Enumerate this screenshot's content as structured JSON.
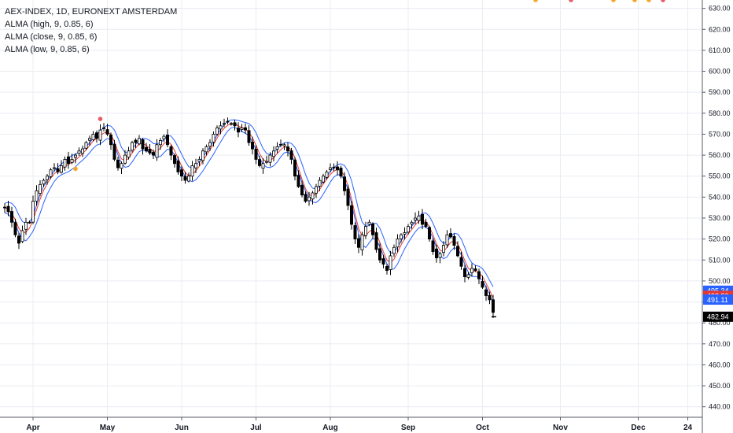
{
  "legend": {
    "title": "AEX-INDEX, 1D, EURONEXT AMSTERDAM",
    "line1": "ALMA (high, 9, 0.85, 6)",
    "line2": "ALMA (close, 9, 0.85, 6)",
    "line3": "ALMA (low, 9, 0.85, 6)"
  },
  "colors": {
    "grid": "#e9ecf2",
    "axis_line": "#555a66",
    "bull_fill": "#ffffff",
    "bear_fill": "#000000",
    "alma_high": "#2962ff",
    "alma_close": "#e53935",
    "alma_low": "#2962ff",
    "dot_orange": "#f5a623",
    "dot_red": "#e85a6a"
  },
  "chart_data": {
    "type": "candlestick",
    "title": "AEX-INDEX, 1D, EURONEXT AMSTERDAM",
    "ylim": [
      435,
      634
    ],
    "y_ticks": [
      440,
      450,
      460,
      470,
      480,
      490,
      500,
      510,
      520,
      530,
      540,
      550,
      560,
      570,
      580,
      590,
      600,
      610,
      620,
      630
    ],
    "y_tick_labels": [
      "440.00",
      "450.00",
      "460.00",
      "470.00",
      "480.00",
      "490.00",
      "500.00",
      "510.00",
      "520.00",
      "530.00",
      "540.00",
      "550.00",
      "560.00",
      "570.00",
      "580.00",
      "590.00",
      "600.00",
      "610.00",
      "620.00",
      "630.00"
    ],
    "x_labels": [
      "Apr",
      "May",
      "Jun",
      "Jul",
      "Aug",
      "Sep",
      "Oct",
      "Nov",
      "Dec",
      "24"
    ],
    "label_bars": [
      8,
      29,
      50,
      71,
      92,
      114,
      135,
      157,
      179,
      193
    ],
    "close": [
      535,
      533,
      528,
      522,
      518,
      524,
      528,
      528,
      538,
      543,
      546,
      548,
      550,
      553,
      554,
      552,
      555,
      558,
      556,
      558,
      560,
      562,
      563,
      566,
      568,
      570,
      568,
      572,
      573,
      570,
      565,
      558,
      554,
      556,
      560,
      562,
      566,
      566,
      568,
      563,
      562,
      561,
      560,
      565,
      567,
      569,
      565,
      560,
      556,
      552,
      550,
      548,
      550,
      555,
      556,
      558,
      562,
      564,
      566,
      570,
      573,
      574,
      575,
      576,
      575,
      574,
      571,
      573,
      572,
      566,
      563,
      558,
      555,
      556,
      557,
      560,
      562,
      564,
      565,
      565,
      562,
      558,
      550,
      545,
      541,
      538,
      540,
      542,
      545,
      548,
      550,
      552,
      554,
      554,
      553,
      550,
      543,
      536,
      527,
      520,
      516,
      522,
      526,
      528,
      522,
      515,
      510,
      508,
      505,
      512,
      516,
      520,
      522,
      523,
      526,
      528,
      530,
      531,
      527,
      526,
      520,
      514,
      511,
      513,
      517,
      522,
      521,
      517,
      512,
      507,
      502,
      503,
      506,
      505,
      501,
      497,
      493,
      491,
      485
    ],
    "series": [
      {
        "name": "ALMA (high, 9, 0.85, 6)",
        "last": "495.34",
        "color": "#2962ff"
      },
      {
        "name": "ALMA (close, 9, 0.85, 6)",
        "last": "492.90",
        "color": "#e53935"
      },
      {
        "name": "ALMA (low, 9, 0.85, 6)",
        "last": "491.11",
        "color": "#2962ff"
      },
      {
        "name": "AEX-INDEX",
        "last": "482.94",
        "color": "#000000"
      }
    ],
    "signals": [
      {
        "bar": 20,
        "kind": "orange"
      },
      {
        "bar": 27,
        "kind": "red"
      },
      {
        "bar": 150,
        "kind": "orange"
      },
      {
        "bar": 160,
        "kind": "red"
      },
      {
        "bar": 172,
        "kind": "orange"
      },
      {
        "bar": 178,
        "kind": "orange"
      },
      {
        "bar": 182,
        "kind": "orange"
      },
      {
        "bar": 186,
        "kind": "red"
      }
    ],
    "grid": true,
    "legend_position": "top-left"
  }
}
